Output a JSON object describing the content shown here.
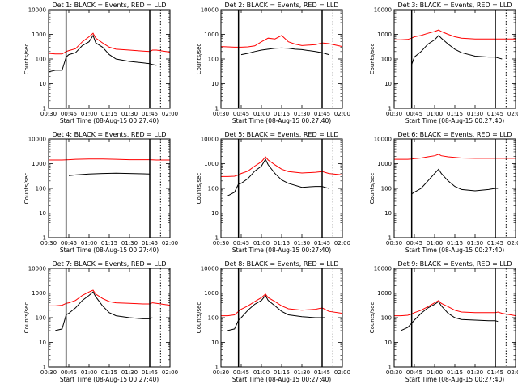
{
  "figure": {
    "colors": {
      "events": "#000000",
      "lld": "#ff0000",
      "axes": "#000000"
    },
    "x_tick_labels": [
      "00:30",
      "00:45",
      "01:00",
      "01:15",
      "01:30",
      "01:45",
      "02:00"
    ],
    "y_tick_labels": [
      "1",
      "10",
      "100",
      "1000",
      "10000"
    ]
  },
  "chart_data": [
    {
      "type": "line",
      "title": "Det 1: BLACK = Events, RED = LLD",
      "xlabel": "Start Time (08-Aug-15 00:27:40)",
      "ylabel": "Counts/sec",
      "ylim": [
        1,
        10000
      ],
      "yscale": "log",
      "x": [
        "00:30",
        "00:35",
        "00:40",
        "00:43",
        "00:45",
        "00:50",
        "00:55",
        "01:00",
        "01:03",
        "01:05",
        "01:10",
        "01:15",
        "01:20",
        "01:30",
        "01:40",
        "01:45",
        "01:47",
        "01:50",
        "02:00"
      ],
      "series": [
        {
          "name": "Events",
          "color": "black",
          "values": [
            30,
            35,
            35,
            120,
            150,
            180,
            350,
            500,
            900,
            450,
            300,
            150,
            100,
            80,
            70,
            65,
            60,
            55,
            null
          ]
        },
        {
          "name": "LLD",
          "color": "red",
          "values": [
            170,
            160,
            160,
            200,
            220,
            260,
            500,
            800,
            1100,
            700,
            450,
            300,
            250,
            230,
            210,
            200,
            230,
            230,
            190
          ]
        }
      ],
      "vlines": [
        "00:43",
        "01:45"
      ],
      "vlines_dotted": [
        "01:53"
      ]
    },
    {
      "type": "line",
      "title": "Det 2: BLACK = Events, RED = LLD",
      "xlabel": "Start Time (08-Aug-15 00:27:40)",
      "ylabel": "Counts/sec",
      "ylim": [
        1,
        10000
      ],
      "yscale": "log",
      "x": [
        "00:30",
        "00:40",
        "00:45",
        "00:50",
        "00:55",
        "01:00",
        "01:05",
        "01:10",
        "01:15",
        "01:20",
        "01:25",
        "01:30",
        "01:40",
        "01:45",
        "01:50",
        "02:00"
      ],
      "series": [
        {
          "name": "Events",
          "color": "black",
          "values": [
            null,
            null,
            150,
            170,
            200,
            230,
            250,
            270,
            280,
            270,
            250,
            240,
            200,
            180,
            150,
            null
          ]
        },
        {
          "name": "LLD",
          "color": "red",
          "values": [
            320,
            300,
            300,
            310,
            340,
            500,
            700,
            650,
            900,
            500,
            400,
            350,
            380,
            450,
            420,
            320
          ]
        }
      ],
      "vlines": [
        "00:43",
        "01:45"
      ],
      "vlines_dotted": [
        "01:53"
      ]
    },
    {
      "type": "line",
      "title": "Det 3: BLACK = Events, RED = LLD",
      "xlabel": "Start Time (08-Aug-15 00:27:40)",
      "ylabel": "Counts/sec",
      "ylim": [
        1,
        10000
      ],
      "yscale": "log",
      "x": [
        "00:30",
        "00:35",
        "00:40",
        "00:43",
        "00:45",
        "00:50",
        "00:55",
        "01:00",
        "01:03",
        "01:05",
        "01:10",
        "01:15",
        "01:20",
        "01:30",
        "01:40",
        "01:45",
        "01:47",
        "01:50",
        "02:00"
      ],
      "series": [
        {
          "name": "Events",
          "color": "black",
          "values": [
            null,
            null,
            null,
            60,
            120,
            200,
            400,
            600,
            900,
            700,
            400,
            250,
            180,
            130,
            120,
            120,
            110,
            100,
            null
          ]
        },
        {
          "name": "LLD",
          "color": "red",
          "values": [
            600,
            600,
            620,
            700,
            800,
            900,
            1100,
            1300,
            1500,
            1300,
            1000,
            800,
            700,
            650,
            650,
            650,
            650,
            650,
            650
          ]
        }
      ],
      "vlines": [
        "00:43",
        "01:45"
      ],
      "vlines_dotted": [
        "01:53"
      ]
    },
    {
      "type": "line",
      "title": "Det 4: BLACK = Events, RED = LLD",
      "xlabel": "Start Time (08-Aug-15 00:27:40)",
      "ylabel": "Counts/sec",
      "ylim": [
        1,
        10000
      ],
      "yscale": "log",
      "x": [
        "00:30",
        "00:40",
        "00:45",
        "00:50",
        "01:00",
        "01:10",
        "01:20",
        "01:30",
        "01:40",
        "01:45",
        "01:50",
        "02:00"
      ],
      "series": [
        {
          "name": "Events",
          "color": "black",
          "values": [
            null,
            null,
            330,
            350,
            380,
            400,
            410,
            400,
            390,
            380,
            null,
            null
          ]
        },
        {
          "name": "LLD",
          "color": "red",
          "values": [
            1400,
            1400,
            1450,
            1500,
            1550,
            1550,
            1500,
            1450,
            1450,
            1450,
            1400,
            1400
          ]
        }
      ],
      "vlines": [
        "00:43",
        "01:45"
      ],
      "vlines_dotted": [
        "01:53"
      ]
    },
    {
      "type": "line",
      "title": "Det 5: BLACK = Events, RED = LLD",
      "xlabel": "Start Time (08-Aug-15 00:27:40)",
      "ylabel": "Counts/sec",
      "ylim": [
        1,
        10000
      ],
      "yscale": "log",
      "x": [
        "00:30",
        "00:35",
        "00:40",
        "00:43",
        "00:45",
        "00:50",
        "00:55",
        "01:00",
        "01:03",
        "01:05",
        "01:10",
        "01:15",
        "01:20",
        "01:30",
        "01:40",
        "01:45",
        "01:47",
        "01:50",
        "02:00"
      ],
      "series": [
        {
          "name": "Events",
          "color": "black",
          "values": [
            null,
            50,
            70,
            150,
            160,
            250,
            500,
            800,
            1500,
            900,
            400,
            220,
            160,
            110,
            120,
            120,
            110,
            100,
            null
          ]
        },
        {
          "name": "LLD",
          "color": "red",
          "values": [
            300,
            300,
            310,
            350,
            400,
            500,
            800,
            1200,
            1900,
            1400,
            900,
            600,
            480,
            420,
            450,
            480,
            450,
            400,
            350
          ]
        }
      ],
      "vlines": [
        "00:43",
        "01:45"
      ],
      "vlines_dotted": [
        "01:53"
      ]
    },
    {
      "type": "line",
      "title": "Det 6: BLACK = Events, RED = LLD",
      "xlabel": "Start Time (08-Aug-15 00:27:40)",
      "ylabel": "Counts/sec",
      "ylim": [
        1,
        10000
      ],
      "yscale": "log",
      "x": [
        "00:30",
        "00:35",
        "00:40",
        "00:43",
        "00:45",
        "00:50",
        "00:55",
        "01:00",
        "01:03",
        "01:05",
        "01:10",
        "01:15",
        "01:20",
        "01:30",
        "01:40",
        "01:45",
        "01:47",
        "01:50",
        "02:00"
      ],
      "series": [
        {
          "name": "Events",
          "color": "black",
          "values": [
            null,
            null,
            null,
            60,
            70,
            100,
            200,
            400,
            600,
            400,
            200,
            120,
            90,
            80,
            90,
            100,
            100,
            null,
            null
          ]
        },
        {
          "name": "LLD",
          "color": "red",
          "values": [
            1500,
            1500,
            1500,
            1550,
            1600,
            1700,
            1900,
            2100,
            2400,
            2100,
            1900,
            1800,
            1700,
            1650,
            1650,
            1650,
            1650,
            1650,
            1650
          ]
        }
      ],
      "vlines": [
        "00:43",
        "01:45"
      ],
      "vlines_dotted": [
        "01:53"
      ]
    },
    {
      "type": "line",
      "title": "Det 7: BLACK = Events, RED = LLD",
      "xlabel": "Start Time (08-Aug-15 00:27:40)",
      "ylabel": "Counts/sec",
      "ylim": [
        1,
        10000
      ],
      "yscale": "log",
      "x": [
        "00:30",
        "00:35",
        "00:40",
        "00:43",
        "00:45",
        "00:50",
        "00:55",
        "01:00",
        "01:03",
        "01:05",
        "01:10",
        "01:15",
        "01:20",
        "01:30",
        "01:40",
        "01:45",
        "01:47",
        "01:50",
        "02:00"
      ],
      "series": [
        {
          "name": "Events",
          "color": "black",
          "values": [
            null,
            30,
            35,
            130,
            150,
            250,
            500,
            800,
            1100,
            700,
            300,
            160,
            120,
            100,
            90,
            90,
            100,
            null,
            null
          ]
        },
        {
          "name": "LLD",
          "color": "red",
          "values": [
            300,
            300,
            320,
            380,
            400,
            500,
            800,
            1100,
            1300,
            900,
            600,
            450,
            400,
            380,
            360,
            360,
            400,
            380,
            320
          ]
        }
      ],
      "vlines": [
        "00:43",
        "01:45"
      ],
      "vlines_dotted": [
        "01:53"
      ]
    },
    {
      "type": "line",
      "title": "Det 8: BLACK = Events, RED = LLD",
      "xlabel": "Start Time (08-Aug-15 00:27:40)",
      "ylabel": "Counts/sec",
      "ylim": [
        1,
        10000
      ],
      "yscale": "log",
      "x": [
        "00:30",
        "00:35",
        "00:40",
        "00:43",
        "00:45",
        "00:50",
        "00:55",
        "01:00",
        "01:03",
        "01:05",
        "01:10",
        "01:15",
        "01:20",
        "01:30",
        "01:40",
        "01:45",
        "01:47",
        "01:50",
        "02:00"
      ],
      "series": [
        {
          "name": "Events",
          "color": "black",
          "values": [
            null,
            30,
            35,
            80,
            100,
            200,
            350,
            500,
            800,
            500,
            300,
            180,
            130,
            110,
            100,
            100,
            100,
            null,
            null
          ]
        },
        {
          "name": "LLD",
          "color": "red",
          "values": [
            120,
            120,
            130,
            180,
            220,
            300,
            450,
            650,
            900,
            650,
            450,
            300,
            230,
            200,
            220,
            250,
            220,
            180,
            150
          ]
        }
      ],
      "vlines": [
        "00:43",
        "01:45"
      ],
      "vlines_dotted": [
        "01:53"
      ]
    },
    {
      "type": "line",
      "title": "Det 9: BLACK = Events, RED = LLD",
      "xlabel": "Start Time (08-Aug-15 00:27:40)",
      "ylabel": "Counts/sec",
      "ylim": [
        1,
        10000
      ],
      "yscale": "log",
      "x": [
        "00:30",
        "00:35",
        "00:40",
        "00:43",
        "00:45",
        "00:50",
        "00:55",
        "01:00",
        "01:03",
        "01:05",
        "01:10",
        "01:15",
        "01:20",
        "01:30",
        "01:40",
        "01:45",
        "01:47",
        "01:50",
        "02:00"
      ],
      "series": [
        {
          "name": "Events",
          "color": "black",
          "values": [
            null,
            30,
            40,
            60,
            80,
            150,
            250,
            350,
            450,
            300,
            150,
            100,
            85,
            80,
            75,
            75,
            70,
            null,
            null
          ]
        },
        {
          "name": "LLD",
          "color": "red",
          "values": [
            120,
            120,
            125,
            140,
            160,
            200,
            280,
            400,
            500,
            380,
            280,
            200,
            170,
            160,
            160,
            160,
            170,
            150,
            120
          ]
        }
      ],
      "vlines": [
        "00:43",
        "01:45"
      ],
      "vlines_dotted": [
        "01:53"
      ]
    }
  ]
}
